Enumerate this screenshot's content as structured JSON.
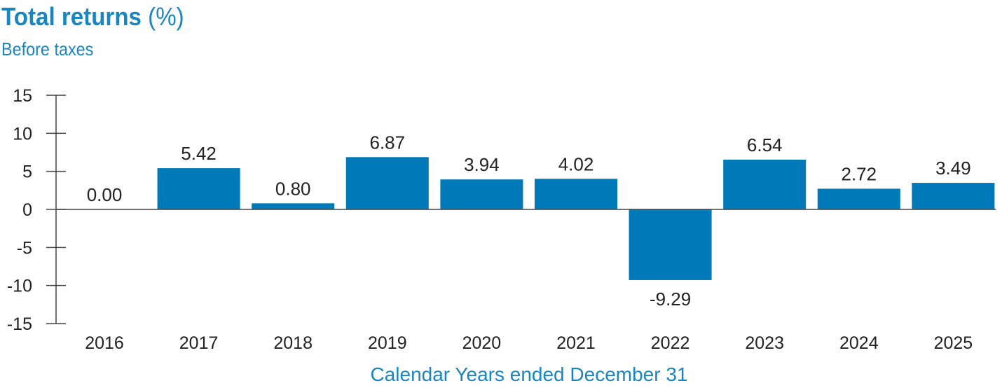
{
  "title_main": "Total returns",
  "title_unit": "(%)",
  "chart_data": {
    "type": "bar",
    "title": "Total returns (%)",
    "subtitle": "Before taxes",
    "xlabel": "Calendar Years ended December 31",
    "ylabel": "",
    "ylim": [
      -15,
      15
    ],
    "yticks": [
      15,
      10,
      5,
      0,
      -5,
      -10,
      -15
    ],
    "categories": [
      "2016",
      "2017",
      "2018",
      "2019",
      "2020",
      "2021",
      "2022",
      "2023",
      "2024",
      "2025"
    ],
    "values": [
      0.0,
      5.42,
      0.8,
      6.87,
      3.94,
      4.02,
      -9.29,
      6.54,
      2.72,
      3.49
    ],
    "value_labels": [
      "0.00",
      "5.42",
      "0.80",
      "6.87",
      "3.94",
      "4.02",
      "-9.29",
      "6.54",
      "2.72",
      "3.49"
    ],
    "bar_color": "#0079b8",
    "grid": false,
    "legend": "none"
  }
}
